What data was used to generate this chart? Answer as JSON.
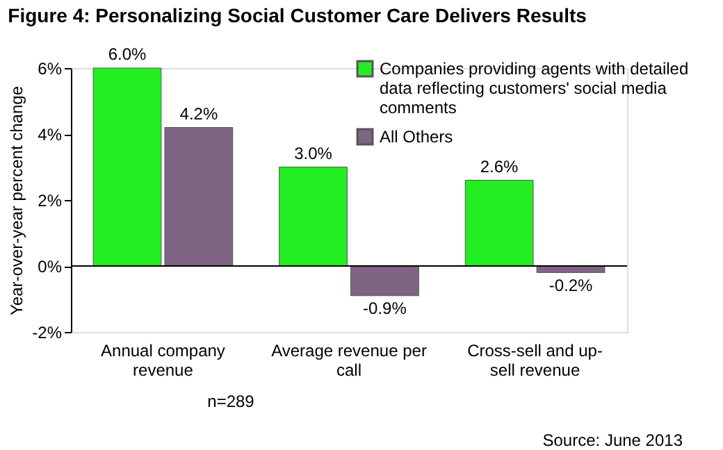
{
  "chart_data": {
    "type": "bar",
    "title": "Figure 4: Personalizing Social Customer Care Delivers Results",
    "ylabel": "Year-over-year percent change",
    "categories": [
      "Annual company revenue",
      "Average revenue per call",
      "Cross-sell and up-sell revenue"
    ],
    "series": [
      {
        "name": "Companies providing agents with detailed data reflecting customers' social media comments",
        "color": "#22ee22",
        "values": [
          6.0,
          3.0,
          2.6
        ],
        "value_labels": [
          "6.0%",
          "3.0%",
          "2.6%"
        ]
      },
      {
        "name": "All Others",
        "color": "#806483",
        "values": [
          4.2,
          -0.9,
          -0.2
        ],
        "value_labels": [
          "4.2%",
          "-0.9%",
          "-0.2%"
        ]
      }
    ],
    "ylim": [
      -2,
      6
    ],
    "yticks": [
      {
        "value": -2,
        "label": "-2%"
      },
      {
        "value": 0,
        "label": "0%"
      },
      {
        "value": 2,
        "label": "2%"
      },
      {
        "value": 4,
        "label": "4%"
      },
      {
        "value": 6,
        "label": "6%"
      }
    ],
    "ref_lines": [
      {
        "axis": "y",
        "value": 0,
        "color": "#000000"
      }
    ],
    "grid": false,
    "legend": "top right",
    "annotations": [
      "n=289",
      "Source: June 2013"
    ]
  }
}
